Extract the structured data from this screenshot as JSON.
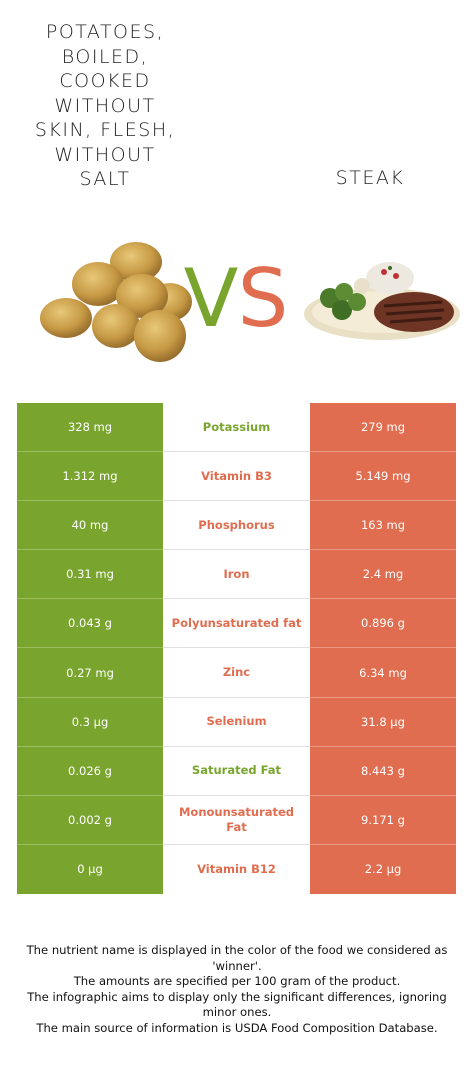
{
  "left_food": {
    "title": "POTATOES, BOILED, COOKED WITHOUT SKIN, FLESH, WITHOUT SALT"
  },
  "right_food": {
    "title": "STEAK"
  },
  "vs": {
    "v": "V",
    "s": "S"
  },
  "colors": {
    "left": "#79a52e",
    "right": "#e06d4f",
    "potato_winner_text": "#79a52e",
    "steak_winner_text": "#e06d4f"
  },
  "rows": [
    {
      "left": "328 mg",
      "nutrient": "Potassium",
      "right": "279 mg",
      "winner": "left"
    },
    {
      "left": "1.312 mg",
      "nutrient": "Vitamin B3",
      "right": "5.149 mg",
      "winner": "right"
    },
    {
      "left": "40 mg",
      "nutrient": "Phosphorus",
      "right": "163 mg",
      "winner": "right"
    },
    {
      "left": "0.31 mg",
      "nutrient": "Iron",
      "right": "2.4 mg",
      "winner": "right"
    },
    {
      "left": "0.043 g",
      "nutrient": "Polyunsaturated fat",
      "right": "0.896 g",
      "winner": "right"
    },
    {
      "left": "0.27 mg",
      "nutrient": "Zinc",
      "right": "6.34 mg",
      "winner": "right"
    },
    {
      "left": "0.3 µg",
      "nutrient": "Selenium",
      "right": "31.8 µg",
      "winner": "right"
    },
    {
      "left": "0.026 g",
      "nutrient": "Saturated Fat",
      "right": "8.443 g",
      "winner": "left"
    },
    {
      "left": "0.002 g",
      "nutrient": "Monounsaturated Fat",
      "right": "9.171 g",
      "winner": "right"
    },
    {
      "left": "0 µg",
      "nutrient": "Vitamin B12",
      "right": "2.2 µg",
      "winner": "right"
    }
  ],
  "footnotes": [
    "The nutrient name is displayed in the color of the food we considered as 'winner'.",
    "The amounts are specified per 100 gram of the product.",
    "The infographic aims to display only the significant differences, ignoring minor ones.",
    "The main source of information is USDA Food Composition Database."
  ]
}
